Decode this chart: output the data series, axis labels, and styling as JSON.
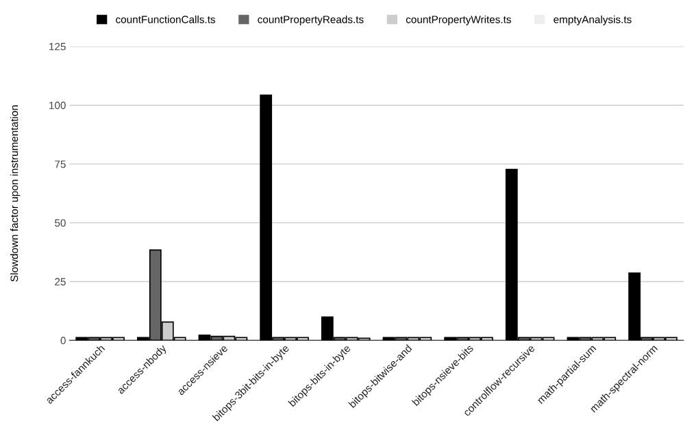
{
  "chart_data": {
    "type": "bar",
    "ylabel": "Slowdown factor upon instrumentation",
    "categories": [
      "access-fannkuch",
      "access-nbody",
      "access-nsieve",
      "bitops-3bit-bits-in-byte",
      "bitops-bits-in-byte",
      "bitops-bitwise-and",
      "bitops-nsieve-bits",
      "controlflow-recursive",
      "math-partial-sum",
      "math-spectral-norm"
    ],
    "series": [
      {
        "name": "countFunctionCalls.ts",
        "color": "#000000",
        "values": [
          1.2,
          1.2,
          2.2,
          104.3,
          9.9,
          1.2,
          1.2,
          72.7,
          1.2,
          28.6
        ]
      },
      {
        "name": "countPropertyReads.ts",
        "color": "#666666",
        "values": [
          1.2,
          38.4,
          1.7,
          1.2,
          1.2,
          1.2,
          1.2,
          1.2,
          1.2,
          1.2
        ]
      },
      {
        "name": "countPropertyWrites.ts",
        "color": "#cccccc",
        "values": [
          1.2,
          7.8,
          1.7,
          1.2,
          1.2,
          1.2,
          1.2,
          1.2,
          1.2,
          1.2
        ]
      },
      {
        "name": "emptyAnalysis.ts",
        "color": "#eeeeee",
        "values": [
          1.2,
          1.2,
          1.2,
          1.2,
          0.9,
          1.2,
          1.2,
          1.2,
          1.2,
          1.2
        ]
      }
    ],
    "ylim": [
      0,
      125
    ],
    "yticks": [
      0,
      25,
      50,
      75,
      100,
      125
    ],
    "grid": "y",
    "legend": "top"
  }
}
